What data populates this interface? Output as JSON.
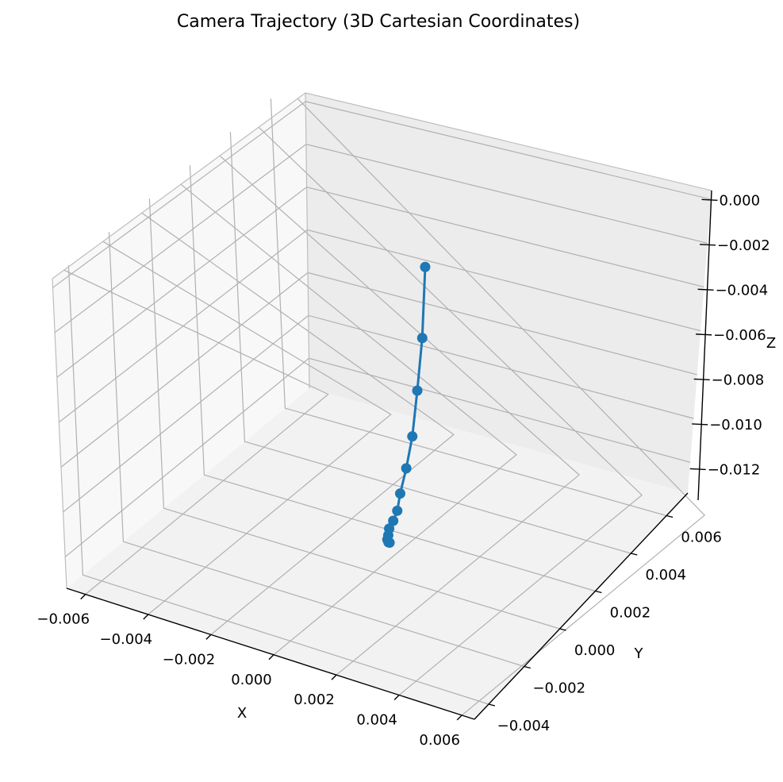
{
  "chart_data": {
    "type": "line",
    "title": "Camera Trajectory (3D Cartesian Coordinates)",
    "xlabel": "X",
    "ylabel": "Y",
    "zlabel": "Z",
    "xlim": [
      -0.0066,
      0.0064
    ],
    "ylim": [
      -0.0048,
      0.0072
    ],
    "zlim": [
      -0.0134,
      0.0004
    ],
    "x_ticks": [
      "−0.006",
      "−0.004",
      "−0.002",
      "0.000",
      "0.002",
      "0.004",
      "0.006"
    ],
    "y_ticks": [
      "−0.004",
      "−0.002",
      "0.000",
      "0.002",
      "0.004",
      "0.006"
    ],
    "z_ticks": [
      "0.000",
      "−0.002",
      "−0.004",
      "−0.006",
      "−0.008",
      "−0.010",
      "−0.012"
    ],
    "grid": true,
    "series_color": "#1f77b4",
    "points": [
      {
        "x": -0.0002,
        "y": 0.003,
        "z": -0.002
      },
      {
        "x": -0.0001,
        "y": 0.0027,
        "z": -0.0049
      },
      {
        "x": 0.0,
        "y": 0.0023,
        "z": -0.0069
      },
      {
        "x": 0.0001,
        "y": 0.0019,
        "z": -0.0086
      },
      {
        "x": 0.0001,
        "y": 0.0016,
        "z": -0.0098
      },
      {
        "x": 0.0001,
        "y": 0.0013,
        "z": -0.0107
      },
      {
        "x": 0.0002,
        "y": 0.001,
        "z": -0.0112
      },
      {
        "x": 0.0002,
        "y": 0.0008,
        "z": -0.0115
      },
      {
        "x": 0.0002,
        "y": 0.0006,
        "z": -0.0117
      },
      {
        "x": 0.0003,
        "y": 0.0004,
        "z": -0.0118
      },
      {
        "x": 0.0004,
        "y": 0.0002,
        "z": -0.0118
      },
      {
        "x": 0.0005,
        "y": 0.0001,
        "z": -0.0118
      },
      {
        "x": 0.0006,
        "y": 0.0,
        "z": -0.0117
      }
    ]
  }
}
